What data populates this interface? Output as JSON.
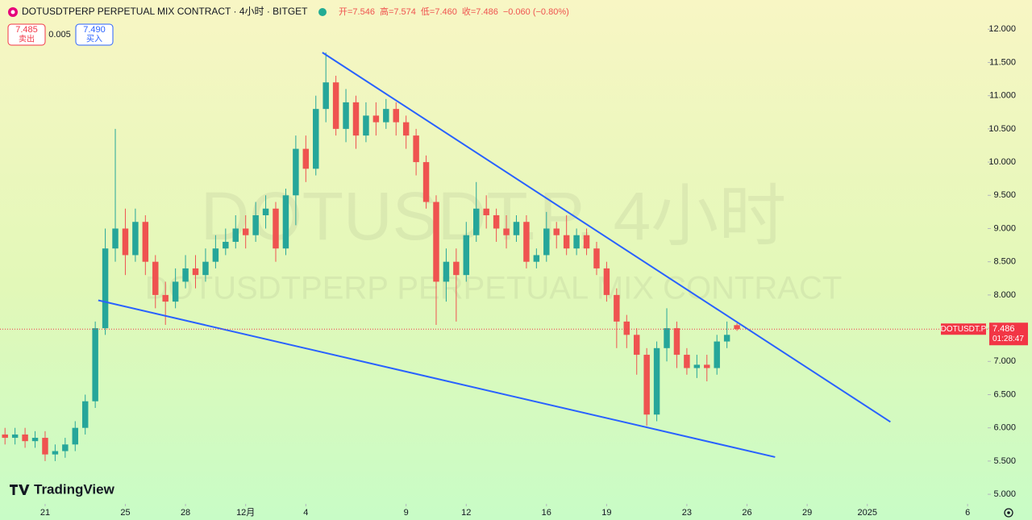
{
  "chart_data": {
    "type": "candlestick",
    "title": "DOTUSDTPERP PERPETUAL MIX CONTRACT · 4小时 · BITGET",
    "ohlc_legend": [
      "开=7.546",
      "高=7.574",
      "低=7.460",
      "收=7.486",
      "−0.060 (−0.80%)"
    ],
    "up_color": "#26a69a",
    "down_color": "#ef5350",
    "xlim": [
      -0.5,
      98
    ],
    "ylim": [
      4.88,
      12.44
    ],
    "yticks": [
      {
        "value": 5,
        "label": "5.000"
      },
      {
        "value": 5.5,
        "label": "5.500"
      },
      {
        "value": 6,
        "label": "6.000"
      },
      {
        "value": 6.5,
        "label": "6.500"
      },
      {
        "value": 7,
        "label": "7.000"
      },
      {
        "value": 7.5,
        "label": "7.500"
      },
      {
        "value": 8,
        "label": "8.000"
      },
      {
        "value": 8.5,
        "label": "8.500"
      },
      {
        "value": 9,
        "label": "9.000"
      },
      {
        "value": 9.5,
        "label": "9.500"
      },
      {
        "value": 10,
        "label": "10.000"
      },
      {
        "value": 10.5,
        "label": "10.500"
      },
      {
        "value": 11,
        "label": "11.000"
      },
      {
        "value": 11.5,
        "label": "11.500"
      },
      {
        "value": 12,
        "label": "12.000"
      }
    ],
    "xticks": [
      {
        "value": 4,
        "label": "21"
      },
      {
        "value": 12,
        "label": "25"
      },
      {
        "value": 18,
        "label": "28"
      },
      {
        "value": 24,
        "label": "12月"
      },
      {
        "value": 30,
        "label": "4"
      },
      {
        "value": 40,
        "label": "9"
      },
      {
        "value": 46,
        "label": "12"
      },
      {
        "value": 54,
        "label": "16"
      },
      {
        "value": 60,
        "label": "19"
      },
      {
        "value": 68,
        "label": "23"
      },
      {
        "value": 74,
        "label": "26"
      },
      {
        "value": 80,
        "label": "29"
      },
      {
        "value": 86,
        "label": "2025"
      },
      {
        "value": 96,
        "label": "6"
      }
    ],
    "open": [
      5.9,
      5.85,
      5.9,
      5.8,
      5.85,
      5.6,
      5.65,
      5.75,
      6.0,
      6.4,
      7.5,
      8.7,
      9.0,
      8.6,
      9.1,
      8.5,
      8.0,
      7.9,
      8.2,
      8.4,
      8.3,
      8.5,
      8.7,
      8.8,
      9.0,
      8.9,
      9.2,
      9.3,
      8.7,
      9.5,
      10.2,
      9.9,
      10.8,
      11.2,
      10.5,
      10.9,
      10.4,
      10.7,
      10.6,
      10.8,
      10.6,
      10.4,
      10.0,
      9.4,
      8.2,
      8.5,
      8.3,
      8.9,
      9.3,
      9.2,
      9.0,
      8.9,
      9.1,
      8.5,
      8.6,
      9.0,
      8.9,
      8.7,
      8.9,
      8.7,
      8.4,
      8.0,
      7.6,
      7.4,
      7.1,
      6.2,
      7.2,
      7.5,
      7.1,
      6.9,
      6.95,
      6.9,
      7.3,
      7.546
    ],
    "high": [
      6.0,
      6.0,
      6.0,
      5.95,
      5.95,
      5.75,
      5.85,
      6.1,
      6.5,
      7.6,
      9.0,
      10.5,
      9.3,
      9.3,
      9.2,
      8.6,
      8.2,
      8.4,
      8.6,
      8.6,
      8.7,
      8.9,
      9.0,
      9.2,
      9.2,
      9.4,
      9.5,
      9.4,
      9.6,
      10.4,
      10.4,
      11.0,
      11.65,
      11.3,
      11.1,
      11.0,
      10.9,
      10.9,
      10.95,
      10.9,
      10.7,
      10.5,
      10.1,
      9.5,
      8.7,
      8.7,
      9.1,
      9.7,
      9.5,
      9.3,
      9.2,
      9.2,
      9.2,
      8.7,
      9.25,
      9.1,
      9.2,
      9.0,
      9.0,
      8.8,
      8.5,
      8.1,
      7.7,
      7.5,
      7.2,
      7.3,
      7.8,
      7.6,
      7.2,
      7.1,
      7.1,
      7.4,
      7.6,
      7.574
    ],
    "low": [
      5.75,
      5.75,
      5.7,
      5.7,
      5.5,
      5.5,
      5.55,
      5.65,
      5.9,
      6.3,
      7.4,
      8.5,
      8.3,
      8.5,
      8.3,
      7.8,
      7.55,
      7.8,
      8.1,
      8.1,
      8.2,
      8.4,
      8.6,
      8.7,
      8.7,
      8.8,
      9.0,
      8.5,
      8.6,
      9.05,
      9.7,
      9.8,
      10.6,
      10.4,
      10.3,
      10.2,
      10.3,
      10.4,
      10.5,
      10.4,
      10.2,
      9.8,
      9.3,
      7.55,
      7.9,
      7.6,
      8.2,
      8.8,
      9.0,
      8.8,
      8.7,
      8.8,
      8.4,
      8.4,
      8.5,
      8.7,
      8.6,
      8.6,
      8.6,
      8.3,
      7.9,
      7.2,
      7.2,
      6.8,
      6.03,
      6.1,
      7.0,
      6.9,
      6.8,
      6.75,
      6.7,
      6.8,
      7.2,
      7.46
    ],
    "close": [
      5.85,
      5.9,
      5.8,
      5.85,
      5.6,
      5.65,
      5.75,
      6.0,
      6.4,
      7.5,
      8.7,
      9.0,
      8.6,
      9.1,
      8.5,
      8.0,
      7.9,
      8.2,
      8.4,
      8.3,
      8.5,
      8.7,
      8.8,
      9.0,
      8.9,
      9.2,
      9.3,
      8.7,
      9.5,
      10.2,
      9.9,
      10.8,
      11.2,
      10.5,
      10.9,
      10.4,
      10.7,
      10.6,
      10.8,
      10.6,
      10.4,
      10.0,
      9.4,
      8.2,
      8.5,
      8.3,
      8.9,
      9.3,
      9.2,
      9.0,
      8.9,
      9.1,
      8.5,
      8.6,
      9.0,
      8.9,
      8.7,
      8.9,
      8.7,
      8.4,
      8.0,
      7.6,
      7.4,
      7.1,
      6.2,
      7.2,
      7.5,
      7.1,
      6.9,
      6.95,
      6.9,
      7.3,
      7.4,
      7.486
    ],
    "trendlines": [
      {
        "color": "#2962ff",
        "x": [
          31.65,
          88.3
        ],
        "y": [
          11.65,
          6.09
        ]
      },
      {
        "color": "#2962ff",
        "x": [
          9.3,
          76.8
        ],
        "y": [
          7.92,
          5.56
        ]
      }
    ],
    "last_price": {
      "symbol": "DOTUSDT.P",
      "value": 7.486,
      "countdown": "01:28:47",
      "color": "#f23645"
    }
  },
  "trade_panel": {
    "sell_price": "7.485",
    "sell_label": "卖出",
    "spread": "0.005",
    "buy_price": "7.490",
    "buy_label": "买入"
  },
  "watermark": {
    "symbol": "DOTUSDT.P, 4小时",
    "description": "DOTUSDTPERP PERPETUAL MIX CONTRACT"
  },
  "branding": "TradingView"
}
